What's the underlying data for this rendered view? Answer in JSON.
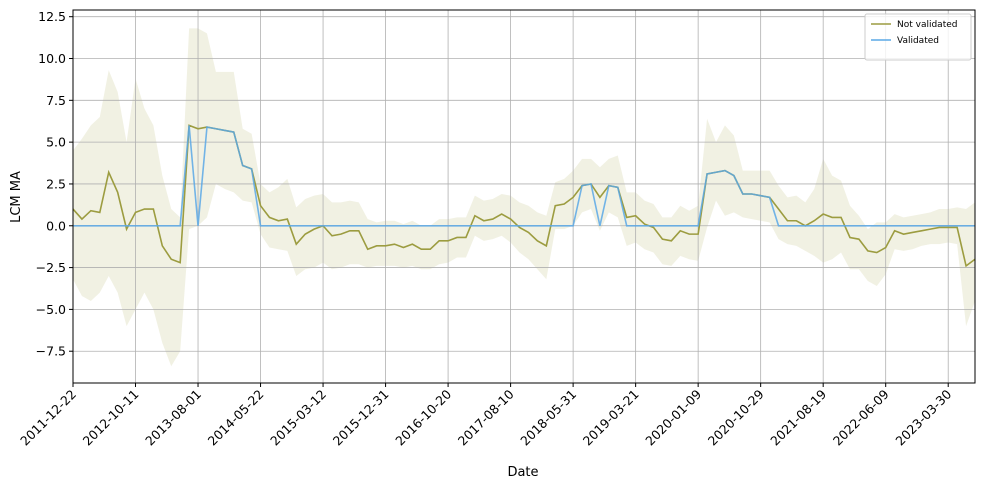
{
  "chart_data": {
    "type": "line",
    "xlabel": "Date",
    "ylabel": "LCM MA",
    "grid": true,
    "legend": "upper right",
    "x": [
      "2011-12-22",
      "2012-02-02",
      "2012-03-15",
      "2012-04-26",
      "2012-06-07",
      "2012-07-19",
      "2012-08-30",
      "2012-10-11",
      "2012-11-22",
      "2013-01-03",
      "2013-02-14",
      "2013-03-28",
      "2013-05-09",
      "2013-06-20",
      "2013-08-01",
      "2013-09-12",
      "2013-10-24",
      "2013-12-05",
      "2014-01-16",
      "2014-02-27",
      "2014-04-10",
      "2014-05-22",
      "2014-07-03",
      "2014-08-14",
      "2014-09-25",
      "2014-11-06",
      "2014-12-18",
      "2015-01-29",
      "2015-03-12",
      "2015-04-23",
      "2015-06-04",
      "2015-07-16",
      "2015-08-27",
      "2015-10-08",
      "2015-11-19",
      "2015-12-31",
      "2016-02-11",
      "2016-03-24",
      "2016-05-05",
      "2016-06-16",
      "2016-07-28",
      "2016-09-08",
      "2016-10-20",
      "2016-12-01",
      "2017-01-12",
      "2017-02-23",
      "2017-04-06",
      "2017-05-18",
      "2017-06-29",
      "2017-08-10",
      "2017-09-21",
      "2017-11-02",
      "2017-12-14",
      "2018-01-25",
      "2018-03-08",
      "2018-04-19",
      "2018-05-31",
      "2018-07-12",
      "2018-08-23",
      "2018-10-04",
      "2018-11-15",
      "2018-12-27",
      "2019-02-07",
      "2019-03-21",
      "2019-05-02",
      "2019-06-13",
      "2019-07-25",
      "2019-09-05",
      "2019-10-17",
      "2019-11-28",
      "2020-01-09",
      "2020-02-20",
      "2020-04-02",
      "2020-05-14",
      "2020-06-25",
      "2020-08-06",
      "2020-09-17",
      "2020-10-29",
      "2020-12-10",
      "2021-01-21",
      "2021-03-04",
      "2021-04-15",
      "2021-05-27",
      "2021-07-08",
      "2021-08-19",
      "2021-09-30",
      "2021-11-11",
      "2021-12-23",
      "2022-02-03",
      "2022-03-17",
      "2022-04-28",
      "2022-06-09",
      "2022-07-21",
      "2022-09-01",
      "2022-10-13",
      "2022-11-24",
      "2023-01-05",
      "2023-02-16",
      "2023-03-30",
      "2023-05-11",
      "2023-06-22",
      "2023-08-03"
    ],
    "xlim": [
      "2011-12-22",
      "2023-08-03"
    ],
    "xticks": [
      "2011-12-22",
      "2012-10-11",
      "2013-08-01",
      "2014-05-22",
      "2015-03-12",
      "2015-12-31",
      "2016-10-20",
      "2017-08-10",
      "2018-05-31",
      "2019-03-21",
      "2020-01-09",
      "2020-10-29",
      "2021-08-19",
      "2022-06-09",
      "2023-03-30"
    ],
    "ylim": [
      -9.4,
      12.9
    ],
    "yticks": [
      {
        "value": -7.5,
        "label": "−7.5"
      },
      {
        "value": -5,
        "label": "−5.0"
      },
      {
        "value": -2.5,
        "label": "−2.5"
      },
      {
        "value": 0,
        "label": "0.0"
      },
      {
        "value": 2.5,
        "label": "2.5"
      },
      {
        "value": 5,
        "label": "5.0"
      },
      {
        "value": 7.5,
        "label": "7.5"
      },
      {
        "value": 10,
        "label": "10.0"
      },
      {
        "value": 12.5,
        "label": "12.5"
      }
    ],
    "band": {
      "color": "#a0a040",
      "upper": [
        4.5,
        5.2,
        6.0,
        6.5,
        9.3,
        8.0,
        5.0,
        8.8,
        7.0,
        6.0,
        3.0,
        1.0,
        0.5,
        11.8,
        11.8,
        11.5,
        9.2,
        9.2,
        9.2,
        5.8,
        5.5,
        2.5,
        2.0,
        2.3,
        2.8,
        1.1,
        1.6,
        1.8,
        1.9,
        1.4,
        1.4,
        1.5,
        1.4,
        0.4,
        0.2,
        0.3,
        0.3,
        0.1,
        0.3,
        0.0,
        0.0,
        0.4,
        0.4,
        0.5,
        0.5,
        1.8,
        1.5,
        1.6,
        1.9,
        1.8,
        1.4,
        1.2,
        0.8,
        0.6,
        2.6,
        2.8,
        3.3,
        4.0,
        4.0,
        3.5,
        4.0,
        4.2,
        2.0,
        2.0,
        1.5,
        1.3,
        0.5,
        0.5,
        1.2,
        0.9,
        1.2,
        6.4,
        5.0,
        6.0,
        5.4,
        3.3,
        3.3,
        3.3,
        3.3,
        2.4,
        1.7,
        1.8,
        1.4,
        2.2,
        4.0,
        3.0,
        2.7,
        1.2,
        0.6,
        -0.2,
        0.2,
        0.2,
        0.7,
        0.5,
        0.6,
        0.7,
        0.8,
        1.0,
        1.0,
        1.1,
        1.0,
        1.4
      ],
      "lower": [
        -3.2,
        -4.2,
        -4.5,
        -4.0,
        -3.0,
        -4.0,
        -6.0,
        -5.0,
        -4.0,
        -5.0,
        -7.0,
        -8.4,
        -7.5,
        -0.2,
        0.0,
        0.5,
        2.5,
        2.2,
        2.0,
        1.5,
        1.4,
        -0.5,
        -1.3,
        -1.4,
        -1.5,
        -3.0,
        -2.6,
        -2.5,
        -2.2,
        -2.6,
        -2.5,
        -2.3,
        -2.3,
        -2.5,
        -2.4,
        -2.4,
        -2.4,
        -2.5,
        -2.4,
        -2.6,
        -2.6,
        -2.3,
        -2.2,
        -1.9,
        -1.9,
        -0.6,
        -0.9,
        -0.8,
        -0.6,
        -1.0,
        -1.6,
        -2.0,
        -2.6,
        -3.2,
        -0.2,
        -0.2,
        0.0,
        0.8,
        1.0,
        -0.3,
        0.8,
        0.5,
        -1.2,
        -1.0,
        -1.4,
        -1.6,
        -2.3,
        -2.4,
        -1.8,
        -2.0,
        -2.1,
        -0.1,
        1.5,
        0.6,
        0.8,
        0.5,
        0.4,
        0.3,
        0.2,
        -0.8,
        -1.1,
        -1.2,
        -1.5,
        -1.8,
        -2.2,
        -2.0,
        -1.6,
        -2.6,
        -2.6,
        -3.3,
        -3.6,
        -2.9,
        -1.4,
        -1.5,
        -1.4,
        -1.2,
        -1.1,
        -1.1,
        -1.0,
        -1.1,
        -6.0,
        -4.5
      ]
    },
    "series": [
      {
        "name": "Not validated",
        "color": "#9c9c40",
        "values": [
          1.0,
          0.4,
          0.9,
          0.8,
          3.2,
          2.0,
          -0.2,
          0.8,
          1.0,
          1.0,
          -1.2,
          -2.0,
          -2.2,
          6.0,
          5.8,
          5.9,
          5.8,
          5.7,
          5.6,
          3.6,
          3.4,
          1.2,
          0.5,
          0.3,
          0.4,
          -1.1,
          -0.5,
          -0.2,
          0.0,
          -0.6,
          -0.5,
          -0.3,
          -0.3,
          -1.4,
          -1.2,
          -1.2,
          -1.1,
          -1.3,
          -1.1,
          -1.4,
          -1.4,
          -0.9,
          -0.9,
          -0.7,
          -0.7,
          0.6,
          0.3,
          0.4,
          0.7,
          0.4,
          -0.1,
          -0.4,
          -0.9,
          -1.2,
          1.2,
          1.3,
          1.7,
          2.4,
          2.5,
          1.7,
          2.4,
          2.3,
          0.5,
          0.6,
          0.1,
          -0.1,
          -0.8,
          -0.9,
          -0.3,
          -0.5,
          -0.5,
          3.1,
          3.2,
          3.3,
          3.0,
          1.9,
          1.9,
          1.8,
          1.7,
          1.0,
          0.3,
          0.3,
          0.0,
          0.3,
          0.7,
          0.5,
          0.5,
          -0.7,
          -0.8,
          -1.5,
          -1.6,
          -1.3,
          -0.3,
          -0.5,
          -0.4,
          -0.3,
          -0.2,
          -0.1,
          -0.1,
          -0.1,
          -2.4,
          -2.0
        ]
      },
      {
        "name": "Validated",
        "color": "#5aa8e6",
        "values": [
          0,
          0,
          0,
          0,
          0,
          0,
          0,
          0,
          0,
          0,
          0,
          0,
          0,
          6.0,
          0,
          5.9,
          5.8,
          5.7,
          5.6,
          3.6,
          3.4,
          0,
          0,
          0,
          0,
          0,
          0,
          0,
          0,
          0,
          0,
          0,
          0,
          0,
          0,
          0,
          0,
          0,
          0,
          0,
          0,
          0,
          0,
          0,
          0,
          0,
          0,
          0,
          0,
          0,
          0,
          0,
          0,
          0,
          0,
          0,
          0,
          2.4,
          2.5,
          0,
          2.4,
          2.3,
          0,
          0,
          0,
          0,
          0,
          0,
          0,
          0,
          0,
          3.1,
          3.2,
          3.3,
          3.0,
          1.9,
          1.9,
          1.8,
          1.7,
          0,
          0,
          0,
          0,
          0,
          0,
          0,
          0,
          0,
          0,
          0,
          0,
          0,
          0,
          0,
          0,
          0,
          0,
          0,
          0,
          0,
          0,
          0
        ]
      }
    ]
  }
}
